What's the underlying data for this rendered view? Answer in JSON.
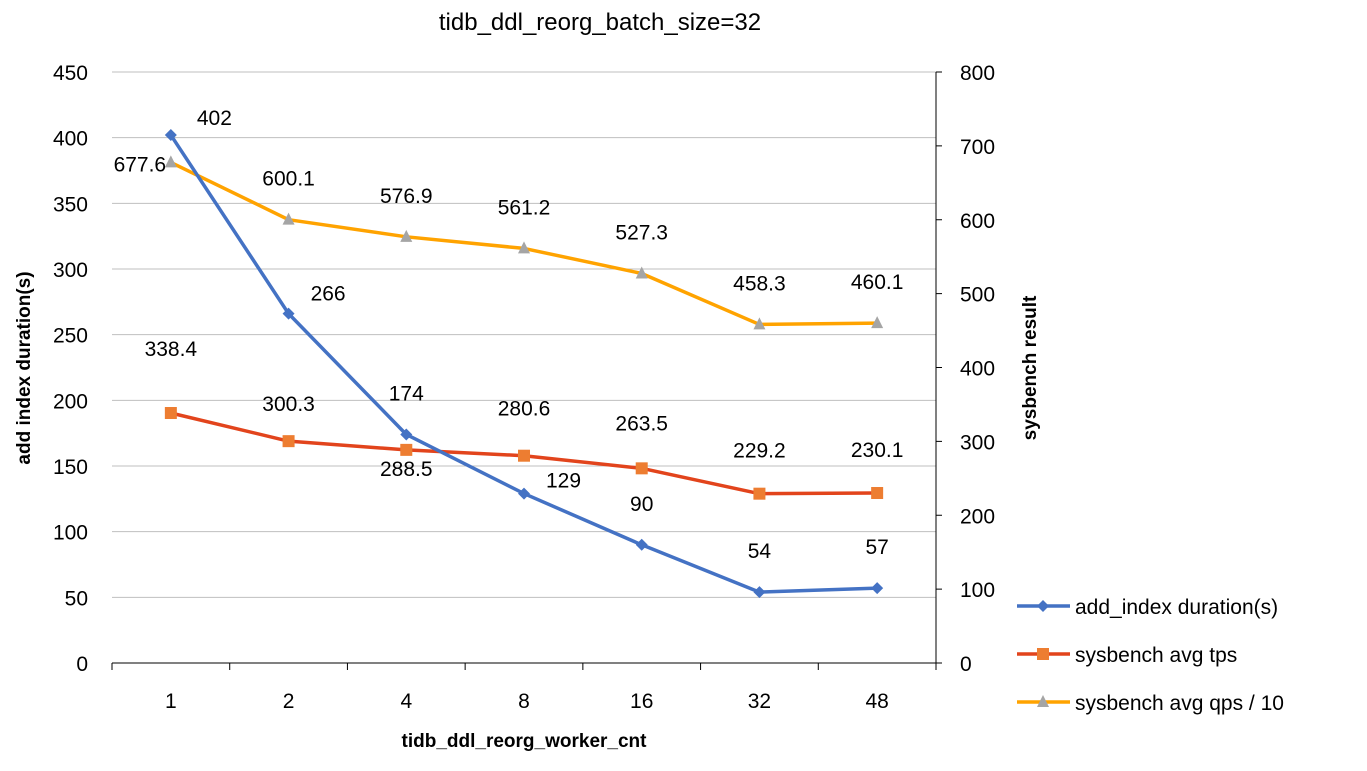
{
  "chart_data": {
    "type": "line",
    "title": "tidb_ddl_reorg_batch_size=32",
    "xlabel": "tidb_ddl_reorg_worker_cnt",
    "ylabel": "add index duration(s)",
    "y2label": "sysbench result",
    "categories": [
      "1",
      "2",
      "4",
      "8",
      "16",
      "32",
      "48"
    ],
    "ylim": [
      0,
      450
    ],
    "yticks": [
      0,
      50,
      100,
      150,
      200,
      250,
      300,
      350,
      400,
      450
    ],
    "y2lim": [
      0,
      800
    ],
    "y2ticks": [
      0,
      100,
      200,
      300,
      400,
      500,
      600,
      700,
      800
    ],
    "grid": true,
    "legend_position": "bottom-right",
    "series": [
      {
        "name": "add_index duration(s)",
        "axis": "left",
        "marker": "diamond",
        "color": "#4472C4",
        "marker_color": "#4472C4",
        "values": [
          402,
          266,
          174,
          129,
          90,
          54,
          57
        ]
      },
      {
        "name": "sysbench avg tps",
        "axis": "right",
        "marker": "square",
        "color": "#E2441C",
        "marker_color": "#ED7D31",
        "values": [
          338.4,
          300.3,
          288.5,
          280.6,
          263.5,
          229.2,
          230.1
        ]
      },
      {
        "name": "sysbench avg qps / 10",
        "axis": "right",
        "marker": "triangle",
        "color": "#FFA300",
        "marker_color": "#A5A5A5",
        "values": [
          677.6,
          600.1,
          576.9,
          561.2,
          527.3,
          458.3,
          460.1
        ]
      }
    ]
  }
}
